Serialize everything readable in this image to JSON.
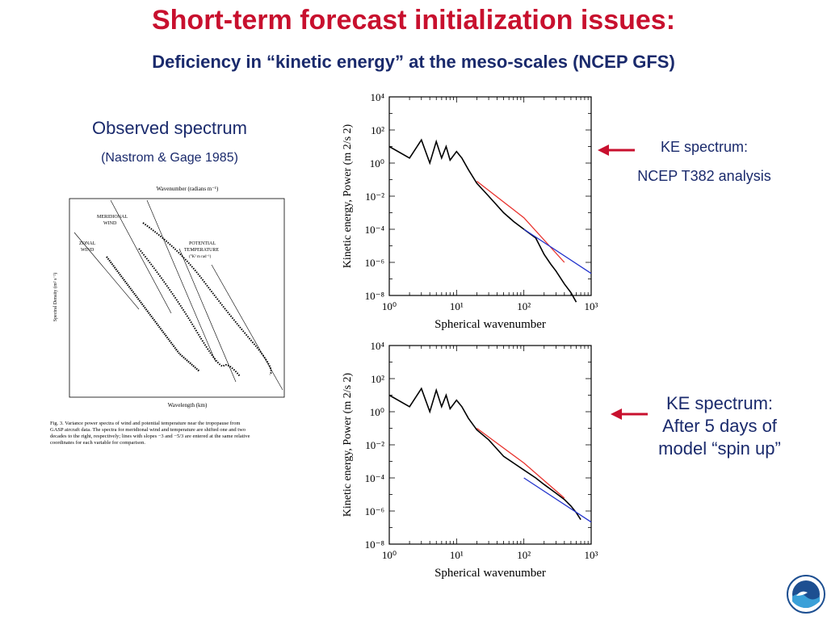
{
  "slide": {
    "title": "Short-term forecast initialization issues:",
    "subtitle": "Deficiency in “kinetic energy” at the meso-scales (NCEP GFS)",
    "observed_title": "Observed spectrum",
    "observed_citation": "(Nastrom & Gage 1985)",
    "callout_top_line1": "KE spectrum:",
    "callout_top_line2": "NCEP T382 analysis",
    "callout_bottom_line1": "KE spectrum:",
    "callout_bottom_line2": "After 5 days of",
    "callout_bottom_line3": "model “spin up”",
    "arrow_color": "#c8102e",
    "logo_icon": "noaa-logo-icon"
  },
  "figure_labels": {
    "top_axis": "Wavenumber (radians m⁻¹)",
    "bottom_axis": "Wavelength (km)",
    "y_axis": "Spectral Density (m² s⁻²)",
    "meridional": "MERIDIONAL",
    "wind1": "WIND",
    "zonal": "ZONAL",
    "wind2": "WIND",
    "potential": "POTENTIAL",
    "temperature": "TEMPERATURE",
    "temp_units": "(°K² m rad⁻¹)",
    "caption1": "Fig. 3. Variance power spectra of wind and potential temperature near the tropopause from",
    "caption2": "GASP aircraft data. The spectra for meridional wind and temperature are shifted one and two",
    "caption3": "decades to the right, respectively; lines with slopes −3 and −5/3 are entered at the same relative",
    "caption4": "coordinates for each variable for comparison."
  },
  "chart_data": [
    {
      "type": "line",
      "title": "",
      "xlabel": "Spherical wavenumber",
      "ylabel": "Kinetic energy, Power (m 2/s 2)",
      "xscale": "log",
      "yscale": "log",
      "xlim": [
        1,
        1000
      ],
      "ylim": [
        1e-08,
        10000
      ],
      "x_tick_labels": [
        "10⁰",
        "10¹",
        "10²",
        "10³"
      ],
      "y_tick_labels": [
        "10⁴",
        "10²",
        "10⁰",
        "10⁻²",
        "10⁻⁴",
        "10⁻⁶",
        "10⁻⁸"
      ],
      "series": [
        {
          "color": "#000000",
          "x": [
            1,
            2,
            3,
            4,
            5,
            6,
            7,
            8,
            10,
            12,
            15,
            20,
            30,
            50,
            70,
            100,
            150,
            200,
            250,
            300,
            400,
            500,
            600
          ],
          "y": [
            10,
            2,
            25,
            1,
            20,
            2,
            10,
            1.5,
            5,
            2,
            0.4,
            0.06,
            0.01,
            0.001,
            0.0003,
            0.0001,
            3e-05,
            3e-06,
            8e-07,
            3e-07,
            5e-08,
            1.5e-08,
            4e-09
          ]
        },
        {
          "color": "#e8322d",
          "x": [
            20,
            100,
            400
          ],
          "y": [
            0.08,
            0.0005,
            1e-06
          ]
        },
        {
          "color": "#2233cc",
          "x": [
            100,
            1000
          ],
          "y": [
            0.0001,
            2.15e-07
          ]
        }
      ]
    },
    {
      "type": "line",
      "title": "",
      "xlabel": "Spherical wavenumber",
      "ylabel": "Kinetic energy, Power (m 2/s 2)",
      "xscale": "log",
      "yscale": "log",
      "xlim": [
        1,
        1000
      ],
      "ylim": [
        1e-08,
        10000
      ],
      "x_tick_labels": [
        "10⁰",
        "10¹",
        "10²",
        "10³"
      ],
      "y_tick_labels": [
        "10⁴",
        "10²",
        "10⁰",
        "10⁻²",
        "10⁻⁴",
        "10⁻⁶",
        "10⁻⁸"
      ],
      "series": [
        {
          "color": "#000000",
          "x": [
            1,
            2,
            3,
            4,
            5,
            6,
            7,
            8,
            10,
            12,
            15,
            20,
            30,
            50,
            70,
            100,
            150,
            200,
            300,
            400,
            500,
            600,
            700
          ],
          "y": [
            10,
            2,
            25,
            1,
            20,
            2,
            10,
            1.5,
            5,
            2,
            0.4,
            0.08,
            0.02,
            0.002,
            0.0008,
            0.0003,
            0.0001,
            4e-05,
            1.2e-05,
            5e-06,
            2e-06,
            8e-07,
            3e-07
          ]
        },
        {
          "color": "#e8322d",
          "x": [
            20,
            100,
            400
          ],
          "y": [
            0.1,
            0.0008,
            6e-06
          ]
        },
        {
          "color": "#2233cc",
          "x": [
            100,
            1000
          ],
          "y": [
            0.0001,
            2.15e-07
          ]
        }
      ]
    }
  ]
}
